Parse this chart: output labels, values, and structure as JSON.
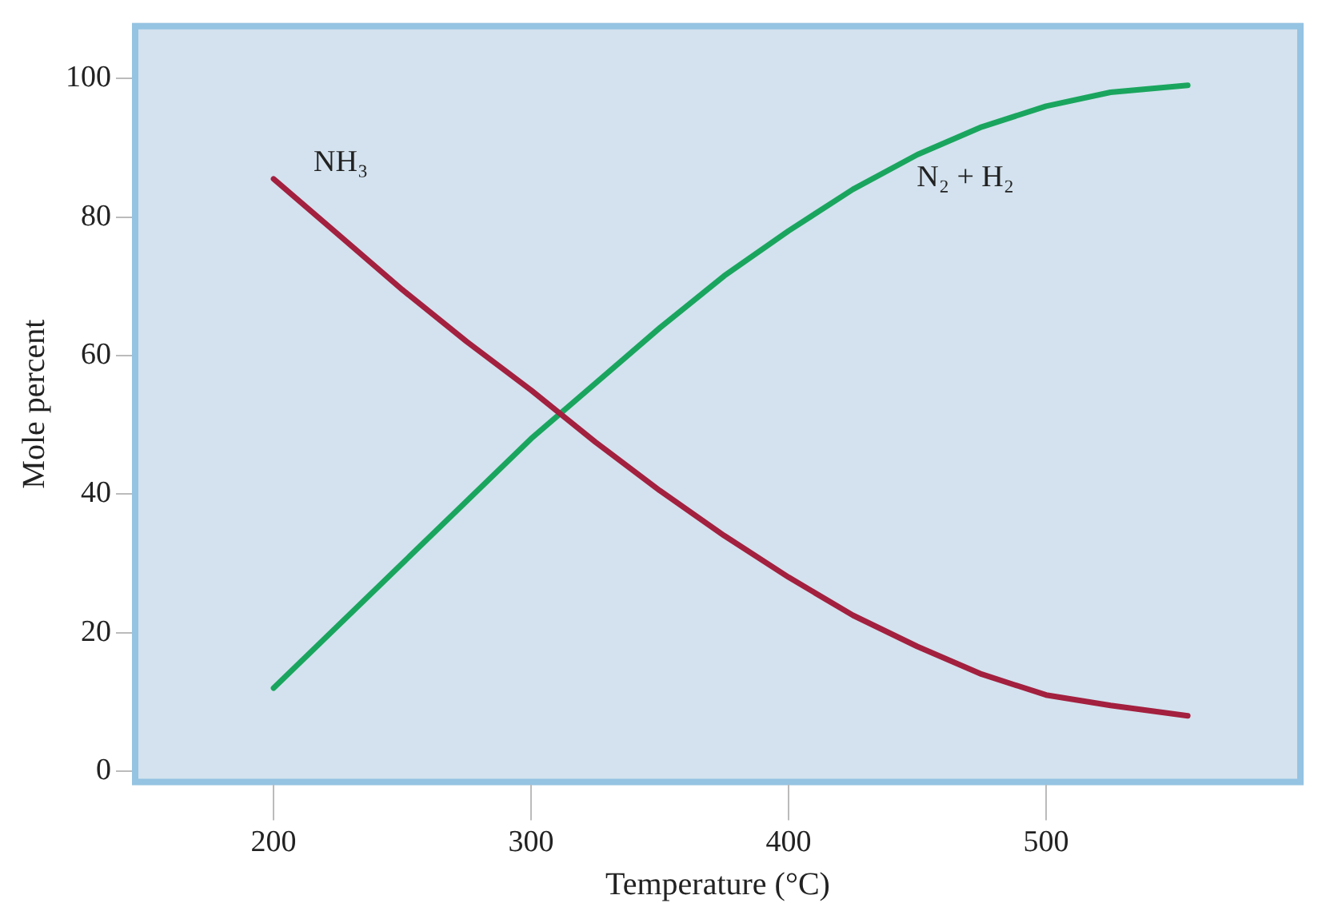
{
  "chart_data": {
    "type": "line",
    "xlabel": "Temperature (°C)",
    "ylabel": "Mole percent",
    "xlim": [
      145,
      600
    ],
    "xticks": [
      200,
      300,
      400,
      500
    ],
    "ylim": [
      -2,
      108
    ],
    "yticks": [
      0,
      20,
      40,
      60,
      80,
      100
    ],
    "grid": false,
    "legend": false,
    "marker": "none",
    "line_style": "solid",
    "x": [
      200,
      225,
      250,
      275,
      300,
      325,
      350,
      375,
      400,
      425,
      450,
      475,
      500,
      525,
      555
    ],
    "series": [
      {
        "name": "NH₃",
        "color": "#a3203f",
        "values": [
          85.5,
          77.5,
          69.5,
          62,
          55,
          47.5,
          40.5,
          34,
          28,
          22.5,
          18,
          14,
          11,
          9.5,
          8
        ]
      },
      {
        "name": "N₂ + H₂",
        "color": "#1aa55e",
        "values": [
          12,
          21,
          30,
          39,
          48,
          56,
          64,
          71.5,
          78,
          84,
          89,
          93,
          96,
          98,
          99
        ]
      }
    ]
  }
}
